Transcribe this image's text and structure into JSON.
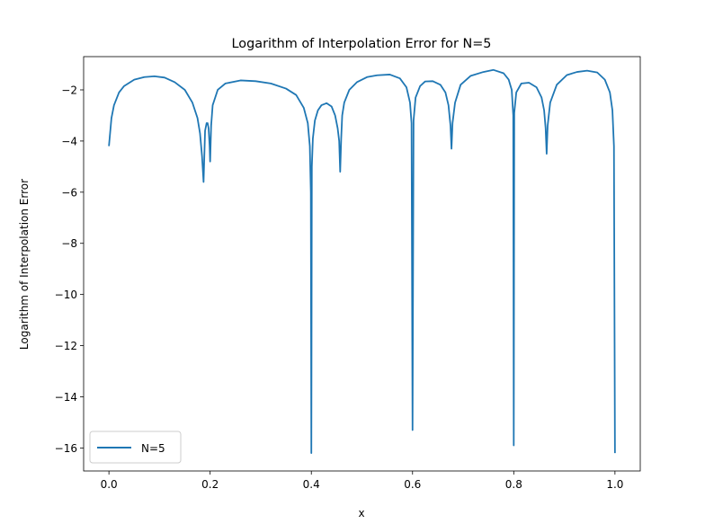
{
  "chart_data": {
    "type": "line",
    "title": "Logarithm of Interpolation Error for N=5",
    "xlabel": "x",
    "ylabel": "Logarithm of Interpolation Error",
    "xlim": [
      -0.05,
      1.05
    ],
    "ylim": [
      -16.9,
      -0.7
    ],
    "xticks": [
      0.0,
      0.2,
      0.4,
      0.6,
      0.8,
      1.0
    ],
    "xtick_labels": [
      "0.0",
      "0.2",
      "0.4",
      "0.6",
      "0.8",
      "1.0"
    ],
    "yticks": [
      -2,
      -4,
      -6,
      -8,
      -10,
      -12,
      -14,
      -16
    ],
    "ytick_labels": [
      "−2",
      "−4",
      "−6",
      "−8",
      "−10",
      "−12",
      "−14",
      "−16"
    ],
    "grid": false,
    "legend_position": "bottom-left",
    "series": [
      {
        "name": "N=5",
        "color": "#1f77b4",
        "x": [
          0.0,
          0.005,
          0.01,
          0.02,
          0.03,
          0.05,
          0.07,
          0.09,
          0.11,
          0.13,
          0.15,
          0.165,
          0.175,
          0.18,
          0.184,
          0.187,
          0.19,
          0.193,
          0.195,
          0.197,
          0.199,
          0.2,
          0.202,
          0.205,
          0.215,
          0.23,
          0.26,
          0.29,
          0.32,
          0.35,
          0.37,
          0.385,
          0.393,
          0.397,
          0.399,
          0.4,
          0.401,
          0.403,
          0.407,
          0.413,
          0.42,
          0.43,
          0.44,
          0.447,
          0.452,
          0.455,
          0.457,
          0.459,
          0.461,
          0.465,
          0.475,
          0.49,
          0.51,
          0.53,
          0.555,
          0.575,
          0.588,
          0.595,
          0.598,
          0.6,
          0.602,
          0.606,
          0.615,
          0.625,
          0.64,
          0.655,
          0.665,
          0.671,
          0.675,
          0.677,
          0.679,
          0.684,
          0.695,
          0.715,
          0.74,
          0.76,
          0.78,
          0.79,
          0.796,
          0.799,
          0.8,
          0.801,
          0.805,
          0.815,
          0.83,
          0.845,
          0.855,
          0.86,
          0.863,
          0.865,
          0.867,
          0.872,
          0.885,
          0.905,
          0.925,
          0.945,
          0.965,
          0.98,
          0.99,
          0.995,
          0.998,
          1.0
        ],
        "y": [
          -4.2,
          -3.1,
          -2.6,
          -2.1,
          -1.85,
          -1.6,
          -1.5,
          -1.47,
          -1.52,
          -1.7,
          -2.0,
          -2.5,
          -3.1,
          -3.7,
          -4.6,
          -5.6,
          -3.6,
          -3.3,
          -3.3,
          -3.5,
          -4.2,
          -4.8,
          -3.4,
          -2.6,
          -2.0,
          -1.75,
          -1.63,
          -1.66,
          -1.75,
          -1.95,
          -2.2,
          -2.7,
          -3.3,
          -4.2,
          -6.0,
          -16.2,
          -5.0,
          -3.9,
          -3.2,
          -2.8,
          -2.6,
          -2.52,
          -2.65,
          -3.0,
          -3.5,
          -4.0,
          -5.2,
          -3.9,
          -3.0,
          -2.5,
          -2.0,
          -1.7,
          -1.5,
          -1.43,
          -1.4,
          -1.55,
          -1.9,
          -2.5,
          -3.3,
          -15.3,
          -3.2,
          -2.3,
          -1.85,
          -1.67,
          -1.66,
          -1.8,
          -2.1,
          -2.6,
          -3.4,
          -4.3,
          -3.3,
          -2.5,
          -1.8,
          -1.45,
          -1.3,
          -1.22,
          -1.35,
          -1.6,
          -2.0,
          -3.0,
          -15.9,
          -2.9,
          -2.1,
          -1.75,
          -1.72,
          -1.9,
          -2.3,
          -2.8,
          -3.5,
          -4.5,
          -3.4,
          -2.5,
          -1.8,
          -1.42,
          -1.3,
          -1.25,
          -1.32,
          -1.6,
          -2.1,
          -2.8,
          -4.2,
          -16.2
        ]
      }
    ]
  }
}
